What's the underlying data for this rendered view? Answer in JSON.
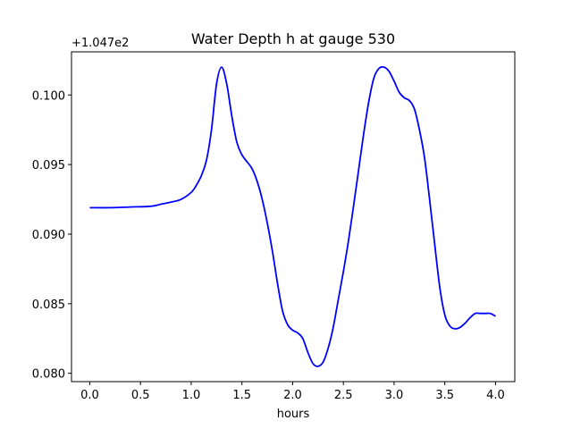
{
  "chart_data": {
    "type": "line",
    "title": "Water Depth h at gauge 530",
    "xlabel": "hours",
    "ylabel": "",
    "offset_text": "+1.047e2",
    "xlim": [
      -0.18,
      4.19
    ],
    "ylim": [
      0.0794,
      0.1031
    ],
    "x_ticks": [
      0.0,
      0.5,
      1.0,
      1.5,
      2.0,
      2.5,
      3.0,
      3.5,
      4.0
    ],
    "x_tick_labels": [
      "0.0",
      "0.5",
      "1.0",
      "1.5",
      "2.0",
      "2.5",
      "3.0",
      "3.5",
      "4.0"
    ],
    "y_ticks": [
      0.08,
      0.085,
      0.09,
      0.095,
      0.1
    ],
    "y_tick_labels": [
      "0.080",
      "0.085",
      "0.090",
      "0.095",
      "0.100"
    ],
    "grid": false,
    "series": [
      {
        "color": "#0000ff",
        "x": [
          0.0,
          0.2,
          0.4,
          0.6,
          0.7,
          0.8,
          0.9,
          1.0,
          1.05,
          1.1,
          1.15,
          1.2,
          1.25,
          1.3,
          1.35,
          1.4,
          1.45,
          1.5,
          1.55,
          1.6,
          1.65,
          1.7,
          1.75,
          1.8,
          1.85,
          1.9,
          1.95,
          2.0,
          2.05,
          2.1,
          2.15,
          2.2,
          2.25,
          2.3,
          2.35,
          2.4,
          2.45,
          2.5,
          2.55,
          2.6,
          2.65,
          2.7,
          2.75,
          2.8,
          2.85,
          2.9,
          2.95,
          3.0,
          3.05,
          3.1,
          3.15,
          3.2,
          3.25,
          3.3,
          3.35,
          3.4,
          3.45,
          3.5,
          3.55,
          3.6,
          3.65,
          3.7,
          3.75,
          3.8,
          3.85,
          3.9,
          3.95,
          4.0
        ],
        "y": [
          0.0919,
          0.0919,
          0.09195,
          0.092,
          0.09215,
          0.0923,
          0.0925,
          0.093,
          0.0935,
          0.0942,
          0.0953,
          0.0975,
          0.1008,
          0.102,
          0.1008,
          0.0985,
          0.0966,
          0.0957,
          0.0952,
          0.0947,
          0.0938,
          0.0925,
          0.0908,
          0.0888,
          0.0865,
          0.0845,
          0.0835,
          0.0831,
          0.0829,
          0.0825,
          0.0815,
          0.0807,
          0.0805,
          0.0808,
          0.0818,
          0.0833,
          0.0853,
          0.0873,
          0.0895,
          0.092,
          0.0946,
          0.0972,
          0.0995,
          0.1012,
          0.1019,
          0.102,
          0.1017,
          0.101,
          0.1002,
          0.0998,
          0.0996,
          0.099,
          0.0975,
          0.0955,
          0.0925,
          0.0893,
          0.0862,
          0.0842,
          0.0834,
          0.0832,
          0.0833,
          0.0836,
          0.084,
          0.0843,
          0.0843,
          0.0843,
          0.0843,
          0.0841
        ]
      }
    ]
  }
}
